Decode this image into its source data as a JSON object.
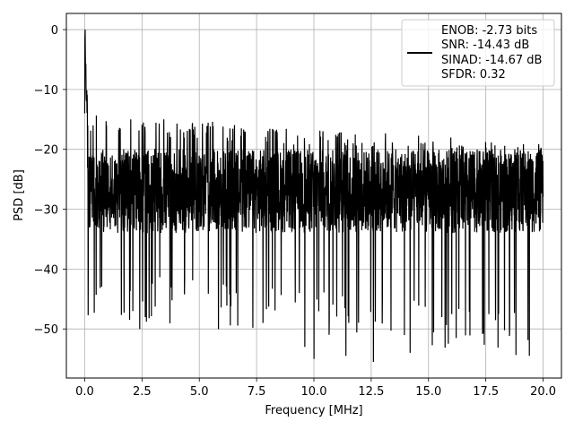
{
  "chart_data": {
    "type": "line",
    "xlabel": "Frequency [MHz]",
    "ylabel": "PSD [dB]",
    "xlim": [
      -0.8,
      20.8
    ],
    "ylim": [
      -58.2,
      2.7
    ],
    "xticks": [
      0.0,
      2.5,
      5.0,
      7.5,
      10.0,
      12.5,
      15.0,
      17.5,
      20.0
    ],
    "xtick_labels": [
      "0.0",
      "2.5",
      "5.0",
      "7.5",
      "10.0",
      "12.5",
      "15.0",
      "17.5",
      "20.0"
    ],
    "yticks": [
      0,
      -10,
      -20,
      -30,
      -40,
      -50
    ],
    "ytick_labels": [
      "0",
      "−10",
      "−20",
      "−30",
      "−40",
      "−50"
    ],
    "grid": true,
    "legend": {
      "placement": "top-right",
      "entries": [
        "ENOB: -2.73 bits",
        "SNR: -14.43 dB",
        "SINAD: -14.67 dB",
        "SFDR: 0.32"
      ]
    },
    "series": [
      {
        "color": "#000000",
        "x_range": [
          0.0,
          20.0
        ],
        "noise_floor_db": -27,
        "upper_envelope_db": [
          -14,
          -19
        ],
        "lower_envelope_db": [
          -48,
          -55
        ],
        "peak": {
          "x": 0.02,
          "y": 0
        },
        "notable_dips": [
          {
            "x": 2.4,
            "y": -50
          },
          {
            "x": 9.6,
            "y": -53
          },
          {
            "x": 10.0,
            "y": -55
          },
          {
            "x": 11.4,
            "y": -54.5
          },
          {
            "x": 12.6,
            "y": -55.5
          },
          {
            "x": 14.2,
            "y": -54
          },
          {
            "x": 19.4,
            "y": -54.5
          }
        ]
      }
    ]
  }
}
